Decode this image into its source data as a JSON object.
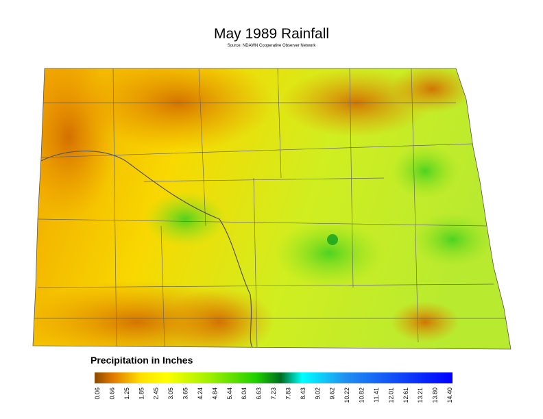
{
  "header": {
    "title": "May 1989 Rainfall",
    "source": "Source: NDAWN Cooperative Observer Network"
  },
  "legend": {
    "title": "Precipitation in Inches",
    "labels": [
      "0.06",
      "0.66",
      "1.25",
      "1.85",
      "2.45",
      "3.05",
      "3.65",
      "4.24",
      "4.84",
      "5.44",
      "6.04",
      "6.63",
      "7.23",
      "7.83",
      "8.43",
      "9.02",
      "9.62",
      "10.22",
      "10.82",
      "11.41",
      "12.01",
      "12.61",
      "13.21",
      "13.80",
      "14.40"
    ]
  }
}
